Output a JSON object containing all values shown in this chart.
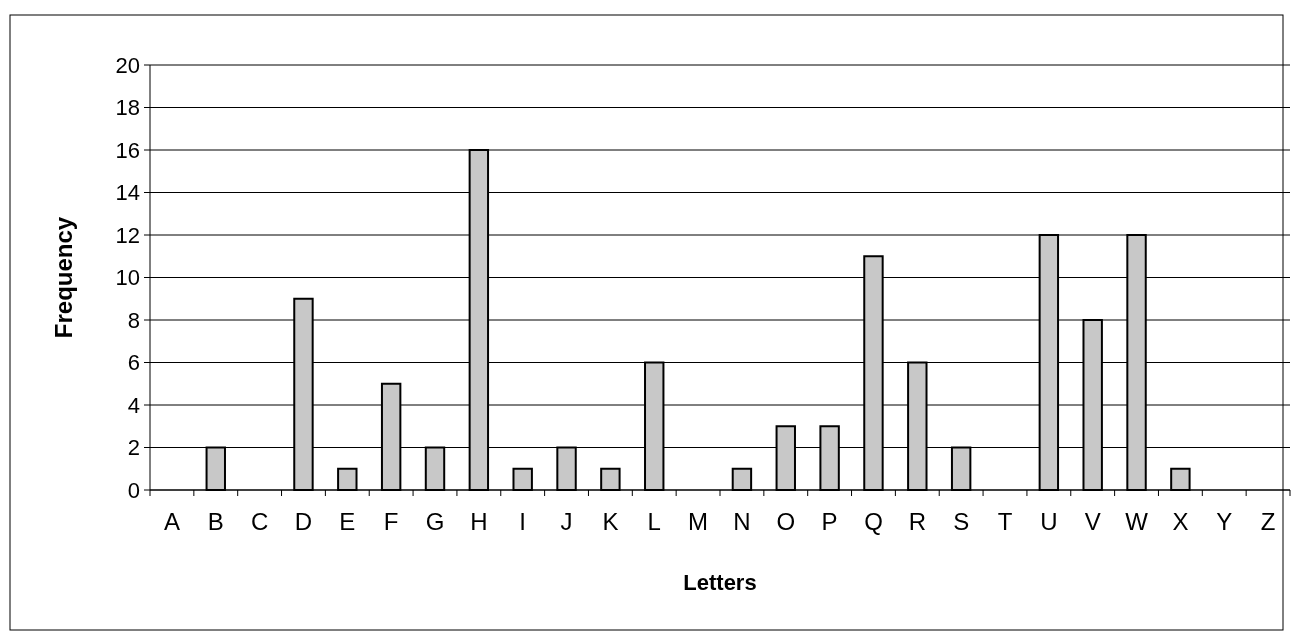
{
  "chart_data": {
    "type": "bar",
    "xlabel": "Letters",
    "ylabel": "Frequency",
    "categories": [
      "A",
      "B",
      "C",
      "D",
      "E",
      "F",
      "G",
      "H",
      "I",
      "J",
      "K",
      "L",
      "M",
      "N",
      "O",
      "P",
      "Q",
      "R",
      "S",
      "T",
      "U",
      "V",
      "W",
      "X",
      "Y",
      "Z"
    ],
    "values": [
      0,
      2,
      0,
      9,
      1,
      5,
      2,
      16,
      1,
      2,
      1,
      6,
      0,
      1,
      3,
      3,
      11,
      6,
      2,
      0,
      12,
      8,
      12,
      1,
      0,
      0
    ],
    "color": "#c8c8c8",
    "ylim": [
      0,
      20
    ],
    "yticks": [
      0,
      2,
      4,
      6,
      8,
      10,
      12,
      14,
      16,
      18,
      20
    ],
    "grid": "y"
  }
}
